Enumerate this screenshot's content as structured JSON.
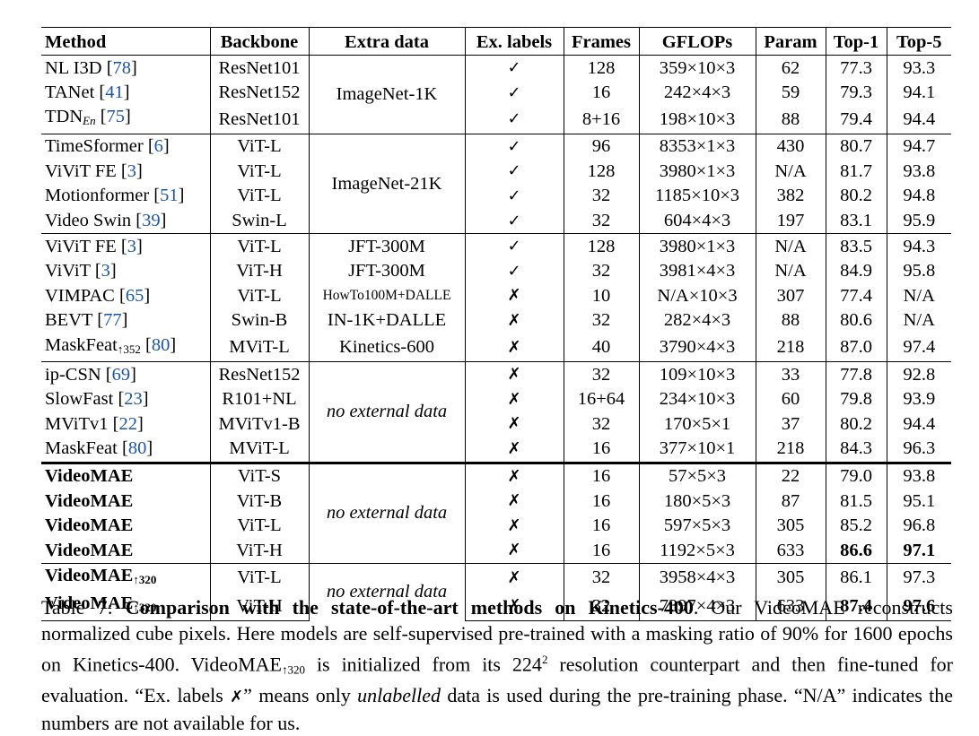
{
  "table": {
    "headers": {
      "method": "Method",
      "backbone": "Backbone",
      "extra": "Extra data",
      "exlabels": "Ex. labels",
      "frames": "Frames",
      "gflops": "GFLOPs",
      "param": "Param",
      "top1": "Top-1",
      "top5": "Top-5"
    },
    "groups": [
      {
        "extra": "ImageNet-1K",
        "rows": [
          {
            "name": "NL I3D",
            "ref": "78",
            "backbone": "ResNet101",
            "exlabels": "✓",
            "frames": "128",
            "gflops": "359×10×3",
            "param": "62",
            "top1": "77.3",
            "top5": "93.3"
          },
          {
            "name": "TANet",
            "ref": "41",
            "backbone": "ResNet152",
            "exlabels": "✓",
            "frames": "16",
            "gflops": "242×4×3",
            "param": "59",
            "top1": "79.3",
            "top5": "94.1"
          },
          {
            "name": "TDN",
            "sub": "En",
            "ref": "75",
            "backbone": "ResNet101",
            "exlabels": "✓",
            "frames": "8+16",
            "gflops": "198×10×3",
            "param": "88",
            "top1": "79.4",
            "top5": "94.4"
          }
        ]
      },
      {
        "extra": "ImageNet-21K",
        "rows": [
          {
            "name": "TimeSformer",
            "ref": "6",
            "backbone": "ViT-L",
            "exlabels": "✓",
            "frames": "96",
            "gflops": "8353×1×3",
            "param": "430",
            "top1": "80.7",
            "top5": "94.7"
          },
          {
            "name": "ViViT FE",
            "ref": "3",
            "backbone": "ViT-L",
            "exlabels": "✓",
            "frames": "128",
            "gflops": "3980×1×3",
            "param": "N/A",
            "top1": "81.7",
            "top5": "93.8"
          },
          {
            "name": "Motionformer",
            "ref": "51",
            "backbone": "ViT-L",
            "exlabels": "✓",
            "frames": "32",
            "gflops": "1185×10×3",
            "param": "382",
            "top1": "80.2",
            "top5": "94.8"
          },
          {
            "name": "Video Swin",
            "ref": "39",
            "backbone": "Swin-L",
            "exlabels": "✓",
            "frames": "32",
            "gflops": "604×4×3",
            "param": "197",
            "top1": "83.1",
            "top5": "95.9"
          }
        ]
      },
      {
        "extra": "",
        "rows": [
          {
            "name": "ViViT FE",
            "ref": "3",
            "backbone": "ViT-L",
            "extra": "JFT-300M",
            "exlabels": "✓",
            "frames": "128",
            "gflops": "3980×1×3",
            "param": "N/A",
            "top1": "83.5",
            "top5": "94.3"
          },
          {
            "name": "ViViT",
            "ref": "3",
            "backbone": "ViT-H",
            "extra": "JFT-300M",
            "exlabels": "✓",
            "frames": "32",
            "gflops": "3981×4×3",
            "param": "N/A",
            "top1": "84.9",
            "top5": "95.8"
          },
          {
            "name": "VIMPAC",
            "ref": "65",
            "backbone": "ViT-L",
            "extra": "HowTo100M+DALLE",
            "exlabels": "✗",
            "frames": "10",
            "gflops": "N/A×10×3",
            "param": "307",
            "top1": "77.4",
            "top5": "N/A"
          },
          {
            "name": "BEVT",
            "ref": "77",
            "backbone": "Swin-B",
            "extra": "IN-1K+DALLE",
            "exlabels": "✗",
            "frames": "32",
            "gflops": "282×4×3",
            "param": "88",
            "top1": "80.6",
            "top5": "N/A"
          },
          {
            "name": "MaskFeat",
            "sub": "↑352",
            "ref": "80",
            "backbone": "MViT-L",
            "extra": "Kinetics-600",
            "exlabels": "✗",
            "frames": "40",
            "gflops": "3790×4×3",
            "param": "218",
            "top1": "87.0",
            "top5": "97.4"
          }
        ]
      },
      {
        "extra": "no external data",
        "rows": [
          {
            "name": "ip-CSN",
            "ref": "69",
            "backbone": "ResNet152",
            "exlabels": "✗",
            "frames": "32",
            "gflops": "109×10×3",
            "param": "33",
            "top1": "77.8",
            "top5": "92.8"
          },
          {
            "name": "SlowFast",
            "ref": "23",
            "backbone": "R101+NL",
            "exlabels": "✗",
            "frames": "16+64",
            "gflops": "234×10×3",
            "param": "60",
            "top1": "79.8",
            "top5": "93.9"
          },
          {
            "name": "MViTv1",
            "ref": "22",
            "backbone": "MViTv1-B",
            "exlabels": "✗",
            "frames": "32",
            "gflops": "170×5×1",
            "param": "37",
            "top1": "80.2",
            "top5": "94.4"
          },
          {
            "name": "MaskFeat",
            "ref": "80",
            "backbone": "MViT-L",
            "exlabels": "✗",
            "frames": "16",
            "gflops": "377×10×1",
            "param": "218",
            "top1": "84.3",
            "top5": "96.3"
          }
        ]
      },
      {
        "extra": "no external data",
        "rows": [
          {
            "name": "VideoMAE",
            "backbone": "ViT-S",
            "exlabels": "✗",
            "frames": "16",
            "gflops": "57×5×3",
            "param": "22",
            "top1": "79.0",
            "top5": "93.8"
          },
          {
            "name": "VideoMAE",
            "backbone": "ViT-B",
            "exlabels": "✗",
            "frames": "16",
            "gflops": "180×5×3",
            "param": "87",
            "top1": "81.5",
            "top5": "95.1"
          },
          {
            "name": "VideoMAE",
            "backbone": "ViT-L",
            "exlabels": "✗",
            "frames": "16",
            "gflops": "597×5×3",
            "param": "305",
            "top1": "85.2",
            "top5": "96.8"
          },
          {
            "name": "VideoMAE",
            "backbone": "ViT-H",
            "exlabels": "✗",
            "frames": "16",
            "gflops": "1192×5×3",
            "param": "633",
            "top1": "86.6",
            "top5": "97.1"
          }
        ]
      },
      {
        "extra": "no external data",
        "rows": [
          {
            "name": "VideoMAE",
            "sub": "↑320",
            "backbone": "ViT-L",
            "exlabels": "✗",
            "frames": "32",
            "gflops": "3958×4×3",
            "param": "305",
            "top1": "86.1",
            "top5": "97.3"
          },
          {
            "name": "VideoMAE",
            "sub": "↑320",
            "backbone": "ViT-H",
            "exlabels": "✗",
            "frames": "32",
            "gflops": "7397×4×3",
            "param": "633",
            "top1": "87.4",
            "top5": "97.6"
          }
        ]
      }
    ]
  },
  "caption": {
    "label": "Table 7: ",
    "title": "Comparison with the state-of-the-art methods on Kinetics-400",
    "s1": ". Our VideoMAE reconstructs normalized cube pixels. Here models are self-supervised pre-trained with a masking ratio of 90% for 1600 epochs on Kinetics-400. ",
    "model": "VideoMAE",
    "model_sub": "↑320",
    "s2": " is initialized from its 224",
    "sup": "2",
    "s3": " resolution counterpart and then fine-tuned for evaluation. “Ex. labels ",
    "mark": "✗",
    "s4": "” means only ",
    "italic": "unlabelled",
    "s5": " data is used during the pre-training phase. “N/A” indicates the numbers are not available for us."
  }
}
